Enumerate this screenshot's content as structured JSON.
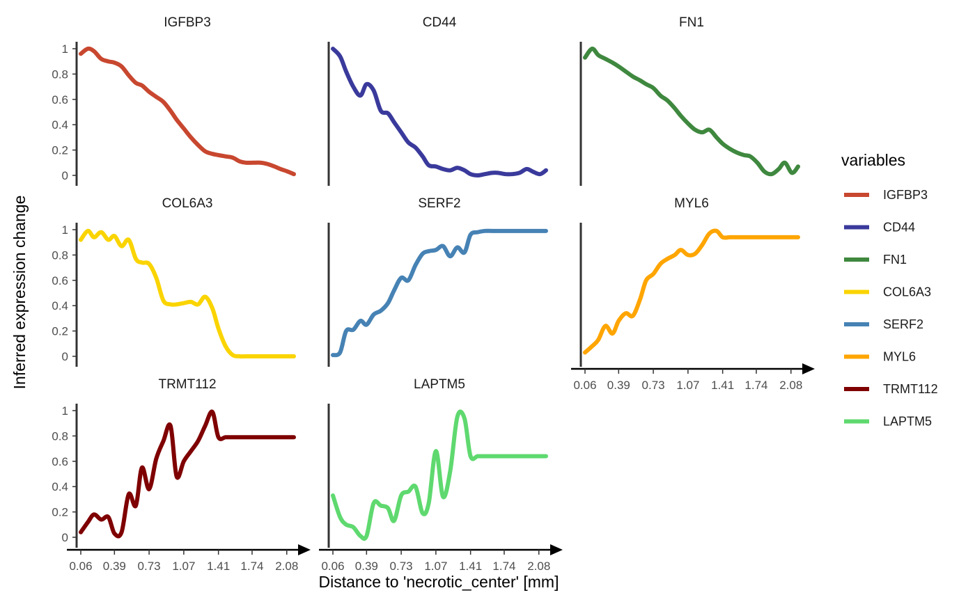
{
  "chart_data": {
    "type": "line",
    "xlabel": "Distance to 'necrotic_center' [mm]",
    "ylabel": "Inferred expression change",
    "xlim": [
      0.06,
      2.15
    ],
    "ylim": [
      0,
      1
    ],
    "x_ticks": [
      "0.06",
      "0.39",
      "0.73",
      "1.07",
      "1.41",
      "1.74",
      "2.08"
    ],
    "y_ticks": [
      "0",
      "0.2",
      "0.4",
      "0.6",
      "0.8",
      "1"
    ],
    "grid": false,
    "legend": {
      "title": "variables",
      "position": "right"
    },
    "series": [
      {
        "name": "IGFBP3",
        "color": "#C8472F",
        "x": [
          0.06,
          0.13,
          0.19,
          0.26,
          0.33,
          0.39,
          0.46,
          0.53,
          0.6,
          0.66,
          0.73,
          0.8,
          0.87,
          0.94,
          1.0,
          1.07,
          1.14,
          1.21,
          1.28,
          1.35,
          1.41,
          1.48,
          1.55,
          1.62,
          1.68,
          1.75,
          1.82,
          1.89,
          1.96,
          2.02,
          2.09,
          2.15
        ],
        "y": [
          0.96,
          1.0,
          0.98,
          0.92,
          0.9,
          0.89,
          0.86,
          0.79,
          0.73,
          0.71,
          0.66,
          0.62,
          0.58,
          0.51,
          0.44,
          0.37,
          0.3,
          0.24,
          0.19,
          0.17,
          0.16,
          0.15,
          0.14,
          0.11,
          0.1,
          0.1,
          0.1,
          0.09,
          0.07,
          0.05,
          0.03,
          0.01
        ]
      },
      {
        "name": "CD44",
        "color": "#3A3A9C",
        "x": [
          0.06,
          0.13,
          0.19,
          0.26,
          0.33,
          0.39,
          0.46,
          0.53,
          0.6,
          0.66,
          0.73,
          0.8,
          0.87,
          0.94,
          1.0,
          1.07,
          1.14,
          1.21,
          1.28,
          1.35,
          1.41,
          1.48,
          1.55,
          1.62,
          1.68,
          1.75,
          1.82,
          1.89,
          1.96,
          2.02,
          2.09,
          2.15
        ],
        "y": [
          1.0,
          0.94,
          0.82,
          0.7,
          0.63,
          0.72,
          0.67,
          0.51,
          0.49,
          0.42,
          0.34,
          0.26,
          0.22,
          0.15,
          0.08,
          0.07,
          0.05,
          0.04,
          0.06,
          0.04,
          0.01,
          0.0,
          0.01,
          0.02,
          0.02,
          0.01,
          0.01,
          0.02,
          0.05,
          0.03,
          0.01,
          0.04
        ]
      },
      {
        "name": "FN1",
        "color": "#3F883F",
        "x": [
          0.06,
          0.13,
          0.19,
          0.26,
          0.33,
          0.39,
          0.46,
          0.53,
          0.6,
          0.66,
          0.73,
          0.8,
          0.87,
          0.94,
          1.0,
          1.07,
          1.14,
          1.21,
          1.28,
          1.35,
          1.41,
          1.48,
          1.55,
          1.62,
          1.68,
          1.75,
          1.82,
          1.89,
          1.96,
          2.02,
          2.09,
          2.15
        ],
        "y": [
          0.93,
          1.0,
          0.95,
          0.92,
          0.89,
          0.86,
          0.82,
          0.78,
          0.75,
          0.72,
          0.69,
          0.63,
          0.59,
          0.53,
          0.47,
          0.41,
          0.36,
          0.34,
          0.36,
          0.3,
          0.25,
          0.21,
          0.18,
          0.16,
          0.15,
          0.1,
          0.03,
          0.01,
          0.05,
          0.1,
          0.02,
          0.07
        ]
      },
      {
        "name": "COL6A3",
        "color": "#FAD400",
        "x": [
          0.06,
          0.13,
          0.19,
          0.26,
          0.33,
          0.39,
          0.46,
          0.53,
          0.6,
          0.66,
          0.73,
          0.8,
          0.87,
          0.94,
          1.0,
          1.07,
          1.14,
          1.21,
          1.28,
          1.35,
          1.41,
          1.48,
          1.55,
          1.62,
          1.68,
          1.75,
          1.82,
          1.89,
          1.96,
          2.02,
          2.09,
          2.15
        ],
        "y": [
          0.92,
          0.99,
          0.94,
          0.98,
          0.92,
          0.95,
          0.87,
          0.92,
          0.77,
          0.74,
          0.73,
          0.62,
          0.44,
          0.41,
          0.41,
          0.42,
          0.43,
          0.41,
          0.47,
          0.38,
          0.22,
          0.08,
          0.01,
          0.0,
          0.0,
          0.0,
          0.0,
          0.0,
          0.0,
          0.0,
          0.0,
          0.0
        ]
      },
      {
        "name": "SERF2",
        "color": "#4682B4",
        "x": [
          0.06,
          0.13,
          0.19,
          0.26,
          0.33,
          0.39,
          0.46,
          0.53,
          0.6,
          0.66,
          0.73,
          0.8,
          0.87,
          0.94,
          1.0,
          1.07,
          1.14,
          1.21,
          1.28,
          1.35,
          1.41,
          1.48,
          1.55,
          1.62,
          1.68,
          1.75,
          1.82,
          1.89,
          1.96,
          2.02,
          2.09,
          2.15
        ],
        "y": [
          0.01,
          0.03,
          0.2,
          0.21,
          0.28,
          0.25,
          0.33,
          0.36,
          0.42,
          0.52,
          0.62,
          0.6,
          0.72,
          0.81,
          0.83,
          0.84,
          0.87,
          0.79,
          0.86,
          0.82,
          0.96,
          0.98,
          0.99,
          0.99,
          0.99,
          0.99,
          0.99,
          0.99,
          0.99,
          0.99,
          0.99,
          0.99
        ]
      },
      {
        "name": "MYL6",
        "color": "#FFA500",
        "x": [
          0.06,
          0.13,
          0.19,
          0.26,
          0.33,
          0.39,
          0.46,
          0.53,
          0.6,
          0.66,
          0.73,
          0.8,
          0.87,
          0.94,
          1.0,
          1.07,
          1.14,
          1.21,
          1.28,
          1.35,
          1.41,
          1.48,
          1.55,
          1.62,
          1.68,
          1.75,
          1.82,
          1.89,
          1.96,
          2.02,
          2.09,
          2.15
        ],
        "y": [
          0.03,
          0.08,
          0.13,
          0.24,
          0.18,
          0.28,
          0.34,
          0.32,
          0.45,
          0.6,
          0.65,
          0.73,
          0.77,
          0.8,
          0.84,
          0.8,
          0.81,
          0.88,
          0.97,
          0.99,
          0.94,
          0.94,
          0.94,
          0.94,
          0.94,
          0.94,
          0.94,
          0.94,
          0.94,
          0.94,
          0.94,
          0.94
        ]
      },
      {
        "name": "TRMT112",
        "color": "#7F0000",
        "x": [
          0.06,
          0.13,
          0.19,
          0.26,
          0.33,
          0.39,
          0.46,
          0.53,
          0.6,
          0.66,
          0.73,
          0.8,
          0.87,
          0.94,
          1.0,
          1.07,
          1.14,
          1.21,
          1.28,
          1.35,
          1.41,
          1.48,
          1.55,
          1.62,
          1.68,
          1.75,
          1.82,
          1.89,
          1.96,
          2.02,
          2.09,
          2.15
        ],
        "y": [
          0.04,
          0.12,
          0.18,
          0.14,
          0.16,
          0.03,
          0.04,
          0.34,
          0.25,
          0.55,
          0.38,
          0.62,
          0.76,
          0.88,
          0.48,
          0.6,
          0.68,
          0.76,
          0.88,
          0.99,
          0.79,
          0.79,
          0.79,
          0.79,
          0.79,
          0.79,
          0.79,
          0.79,
          0.79,
          0.79,
          0.79,
          0.79
        ]
      },
      {
        "name": "LAPTM5",
        "color": "#5FD96F",
        "x": [
          0.06,
          0.13,
          0.19,
          0.26,
          0.33,
          0.39,
          0.46,
          0.53,
          0.6,
          0.66,
          0.73,
          0.8,
          0.87,
          0.94,
          1.0,
          1.07,
          1.14,
          1.21,
          1.28,
          1.35,
          1.41,
          1.48,
          1.55,
          1.62,
          1.68,
          1.75,
          1.82,
          1.89,
          1.96,
          2.02,
          2.09,
          2.15
        ],
        "y": [
          0.33,
          0.16,
          0.1,
          0.08,
          0.01,
          0.01,
          0.27,
          0.25,
          0.23,
          0.13,
          0.33,
          0.36,
          0.4,
          0.19,
          0.27,
          0.68,
          0.32,
          0.52,
          0.95,
          0.94,
          0.64,
          0.64,
          0.64,
          0.64,
          0.64,
          0.64,
          0.64,
          0.64,
          0.64,
          0.64,
          0.64,
          0.64
        ]
      }
    ]
  }
}
